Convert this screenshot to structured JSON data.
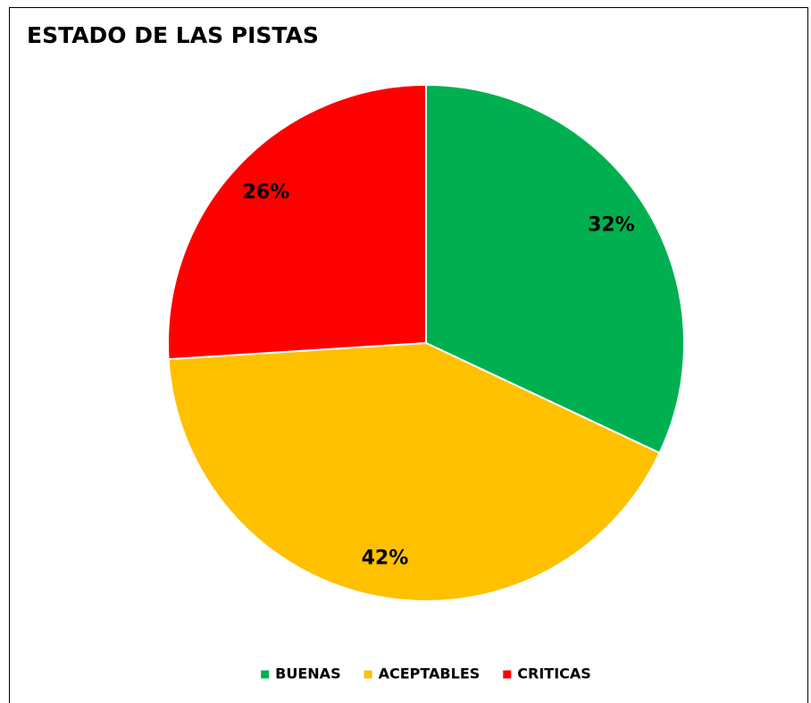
{
  "chart_data": {
    "type": "pie",
    "title": "ESTADO DE LAS PISTAS",
    "categories": [
      "BUENAS",
      "ACEPTABLES",
      "CRITICAS"
    ],
    "values": [
      32,
      42,
      26
    ],
    "value_labels": [
      "32%",
      "42%",
      "26%"
    ],
    "colors": [
      "#00b050",
      "#ffc000",
      "#ff0000"
    ],
    "legend": "bottom"
  }
}
